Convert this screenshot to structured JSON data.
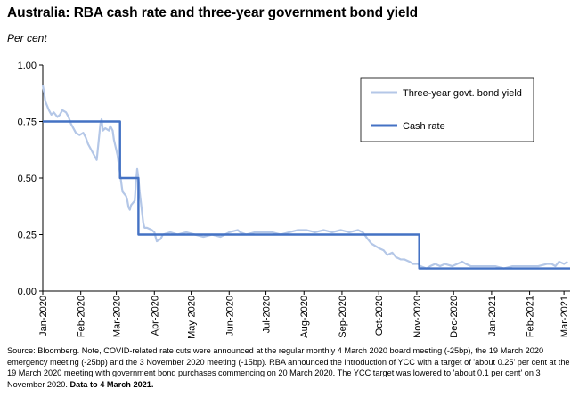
{
  "title": "Australia: RBA cash rate and three-year government bond yield",
  "unit_label": "Per cent",
  "source": {
    "text": "Source: Bloomberg. Note, COVID-related rate cuts were announced at the regular monthly 4 March 2020 board meeting (-25bp), the 19 March 2020 emergency meeting (-25bp) and the 3 November 2020 meeting (-15bp). RBA announced the introduction of YCC with a target of 'about 0.25' per cent at the 19 March 2020 meeting with government bond purchases commencing on 20 March 2020.  The YCC target was lowered to 'about 0.1 per cent' on 3 November 2020.",
    "bold_text": "Data to 4 March 2021."
  },
  "colors": {
    "bond_yield": "#b4c7e7",
    "cash_rate": "#4472c4",
    "axis": "#000000"
  },
  "chart_data": {
    "type": "line",
    "title": "Australia: RBA cash rate and three-year government bond yield",
    "ylabel": "Per cent",
    "xlabel": "",
    "x_range": [
      "2020-01-01",
      "2021-03-06"
    ],
    "ylim": [
      0,
      1.0
    ],
    "yticks": [
      "0.00",
      "0.25",
      "0.50",
      "0.75",
      "1.00"
    ],
    "ytick_values": [
      0,
      0.25,
      0.5,
      0.75,
      1.0
    ],
    "xticks": [
      {
        "label": "Jan-2020",
        "date": "2020-01-01"
      },
      {
        "label": "Feb-2020",
        "date": "2020-02-01"
      },
      {
        "label": "Mar-2020",
        "date": "2020-03-01"
      },
      {
        "label": "Apr-2020",
        "date": "2020-04-01"
      },
      {
        "label": "May-2020",
        "date": "2020-05-01"
      },
      {
        "label": "Jun-2020",
        "date": "2020-06-01"
      },
      {
        "label": "Jul-2020",
        "date": "2020-07-01"
      },
      {
        "label": "Aug-2020",
        "date": "2020-08-01"
      },
      {
        "label": "Sep-2020",
        "date": "2020-09-01"
      },
      {
        "label": "Oct-2020",
        "date": "2020-10-01"
      },
      {
        "label": "Nov-2020",
        "date": "2020-11-01"
      },
      {
        "label": "Dec-2020",
        "date": "2020-12-01"
      },
      {
        "label": "Jan-2021",
        "date": "2021-01-01"
      },
      {
        "label": "Feb-2021",
        "date": "2021-02-01"
      },
      {
        "label": "Mar-2021",
        "date": "2021-03-01"
      }
    ],
    "grid": false,
    "legend_position": "top-right",
    "series": [
      {
        "name": "Three-year govt. bond yield",
        "color": "#b4c7e7",
        "points": [
          [
            "2020-01-01",
            0.91
          ],
          [
            "2020-01-02",
            0.88
          ],
          [
            "2020-01-03",
            0.84
          ],
          [
            "2020-01-06",
            0.8
          ],
          [
            "2020-01-08",
            0.78
          ],
          [
            "2020-01-10",
            0.79
          ],
          [
            "2020-01-13",
            0.77
          ],
          [
            "2020-01-15",
            0.78
          ],
          [
            "2020-01-17",
            0.8
          ],
          [
            "2020-01-20",
            0.79
          ],
          [
            "2020-01-22",
            0.77
          ],
          [
            "2020-01-24",
            0.74
          ],
          [
            "2020-01-28",
            0.7
          ],
          [
            "2020-01-31",
            0.69
          ],
          [
            "2020-02-03",
            0.7
          ],
          [
            "2020-02-05",
            0.68
          ],
          [
            "2020-02-07",
            0.65
          ],
          [
            "2020-02-10",
            0.62
          ],
          [
            "2020-02-12",
            0.6
          ],
          [
            "2020-02-14",
            0.58
          ],
          [
            "2020-02-17",
            0.74
          ],
          [
            "2020-02-18",
            0.76
          ],
          [
            "2020-02-19",
            0.71
          ],
          [
            "2020-02-21",
            0.72
          ],
          [
            "2020-02-24",
            0.71
          ],
          [
            "2020-02-25",
            0.73
          ],
          [
            "2020-02-27",
            0.71
          ],
          [
            "2020-02-28",
            0.67
          ],
          [
            "2020-03-02",
            0.6
          ],
          [
            "2020-03-04",
            0.52
          ],
          [
            "2020-03-05",
            0.48
          ],
          [
            "2020-03-06",
            0.44
          ],
          [
            "2020-03-09",
            0.42
          ],
          [
            "2020-03-10",
            0.4
          ],
          [
            "2020-03-11",
            0.37
          ],
          [
            "2020-03-12",
            0.36
          ],
          [
            "2020-03-13",
            0.38
          ],
          [
            "2020-03-16",
            0.4
          ],
          [
            "2020-03-17",
            0.48
          ],
          [
            "2020-03-18",
            0.54
          ],
          [
            "2020-03-19",
            0.5
          ],
          [
            "2020-03-20",
            0.44
          ],
          [
            "2020-03-23",
            0.3
          ],
          [
            "2020-03-24",
            0.28
          ],
          [
            "2020-03-26",
            0.28
          ],
          [
            "2020-03-30",
            0.27
          ],
          [
            "2020-04-01",
            0.26
          ],
          [
            "2020-04-03",
            0.22
          ],
          [
            "2020-04-06",
            0.23
          ],
          [
            "2020-04-08",
            0.25
          ],
          [
            "2020-04-14",
            0.26
          ],
          [
            "2020-04-20",
            0.25
          ],
          [
            "2020-04-27",
            0.26
          ],
          [
            "2020-05-04",
            0.25
          ],
          [
            "2020-05-11",
            0.24
          ],
          [
            "2020-05-18",
            0.25
          ],
          [
            "2020-05-25",
            0.24
          ],
          [
            "2020-06-01",
            0.26
          ],
          [
            "2020-06-08",
            0.27
          ],
          [
            "2020-06-10",
            0.26
          ],
          [
            "2020-06-15",
            0.25
          ],
          [
            "2020-06-22",
            0.26
          ],
          [
            "2020-06-29",
            0.26
          ],
          [
            "2020-07-06",
            0.26
          ],
          [
            "2020-07-13",
            0.25
          ],
          [
            "2020-07-20",
            0.26
          ],
          [
            "2020-07-27",
            0.27
          ],
          [
            "2020-08-03",
            0.27
          ],
          [
            "2020-08-10",
            0.26
          ],
          [
            "2020-08-17",
            0.27
          ],
          [
            "2020-08-24",
            0.26
          ],
          [
            "2020-08-31",
            0.27
          ],
          [
            "2020-09-07",
            0.26
          ],
          [
            "2020-09-14",
            0.27
          ],
          [
            "2020-09-18",
            0.26
          ],
          [
            "2020-09-22",
            0.23
          ],
          [
            "2020-09-25",
            0.21
          ],
          [
            "2020-09-28",
            0.2
          ],
          [
            "2020-10-01",
            0.19
          ],
          [
            "2020-10-05",
            0.18
          ],
          [
            "2020-10-08",
            0.16
          ],
          [
            "2020-10-12",
            0.17
          ],
          [
            "2020-10-15",
            0.15
          ],
          [
            "2020-10-19",
            0.14
          ],
          [
            "2020-10-22",
            0.14
          ],
          [
            "2020-10-26",
            0.13
          ],
          [
            "2020-10-29",
            0.12
          ],
          [
            "2020-11-02",
            0.12
          ],
          [
            "2020-11-04",
            0.11
          ],
          [
            "2020-11-09",
            0.1
          ],
          [
            "2020-11-12",
            0.11
          ],
          [
            "2020-11-16",
            0.12
          ],
          [
            "2020-11-20",
            0.11
          ],
          [
            "2020-11-24",
            0.12
          ],
          [
            "2020-11-30",
            0.11
          ],
          [
            "2020-12-04",
            0.12
          ],
          [
            "2020-12-08",
            0.13
          ],
          [
            "2020-12-11",
            0.12
          ],
          [
            "2020-12-15",
            0.11
          ],
          [
            "2020-12-21",
            0.11
          ],
          [
            "2020-12-28",
            0.11
          ],
          [
            "2021-01-04",
            0.11
          ],
          [
            "2021-01-11",
            0.1
          ],
          [
            "2021-01-18",
            0.11
          ],
          [
            "2021-01-25",
            0.11
          ],
          [
            "2021-02-01",
            0.11
          ],
          [
            "2021-02-08",
            0.11
          ],
          [
            "2021-02-15",
            0.12
          ],
          [
            "2021-02-19",
            0.12
          ],
          [
            "2021-02-22",
            0.11
          ],
          [
            "2021-02-25",
            0.13
          ],
          [
            "2021-03-01",
            0.12
          ],
          [
            "2021-03-04",
            0.13
          ]
        ]
      },
      {
        "name": "Cash rate",
        "color": "#4472c4",
        "step": true,
        "points": [
          [
            "2020-01-01",
            0.75
          ],
          [
            "2020-03-04",
            0.5
          ],
          [
            "2020-03-19",
            0.25
          ],
          [
            "2020-11-03",
            0.1
          ],
          [
            "2021-03-06",
            0.1
          ]
        ]
      }
    ]
  }
}
